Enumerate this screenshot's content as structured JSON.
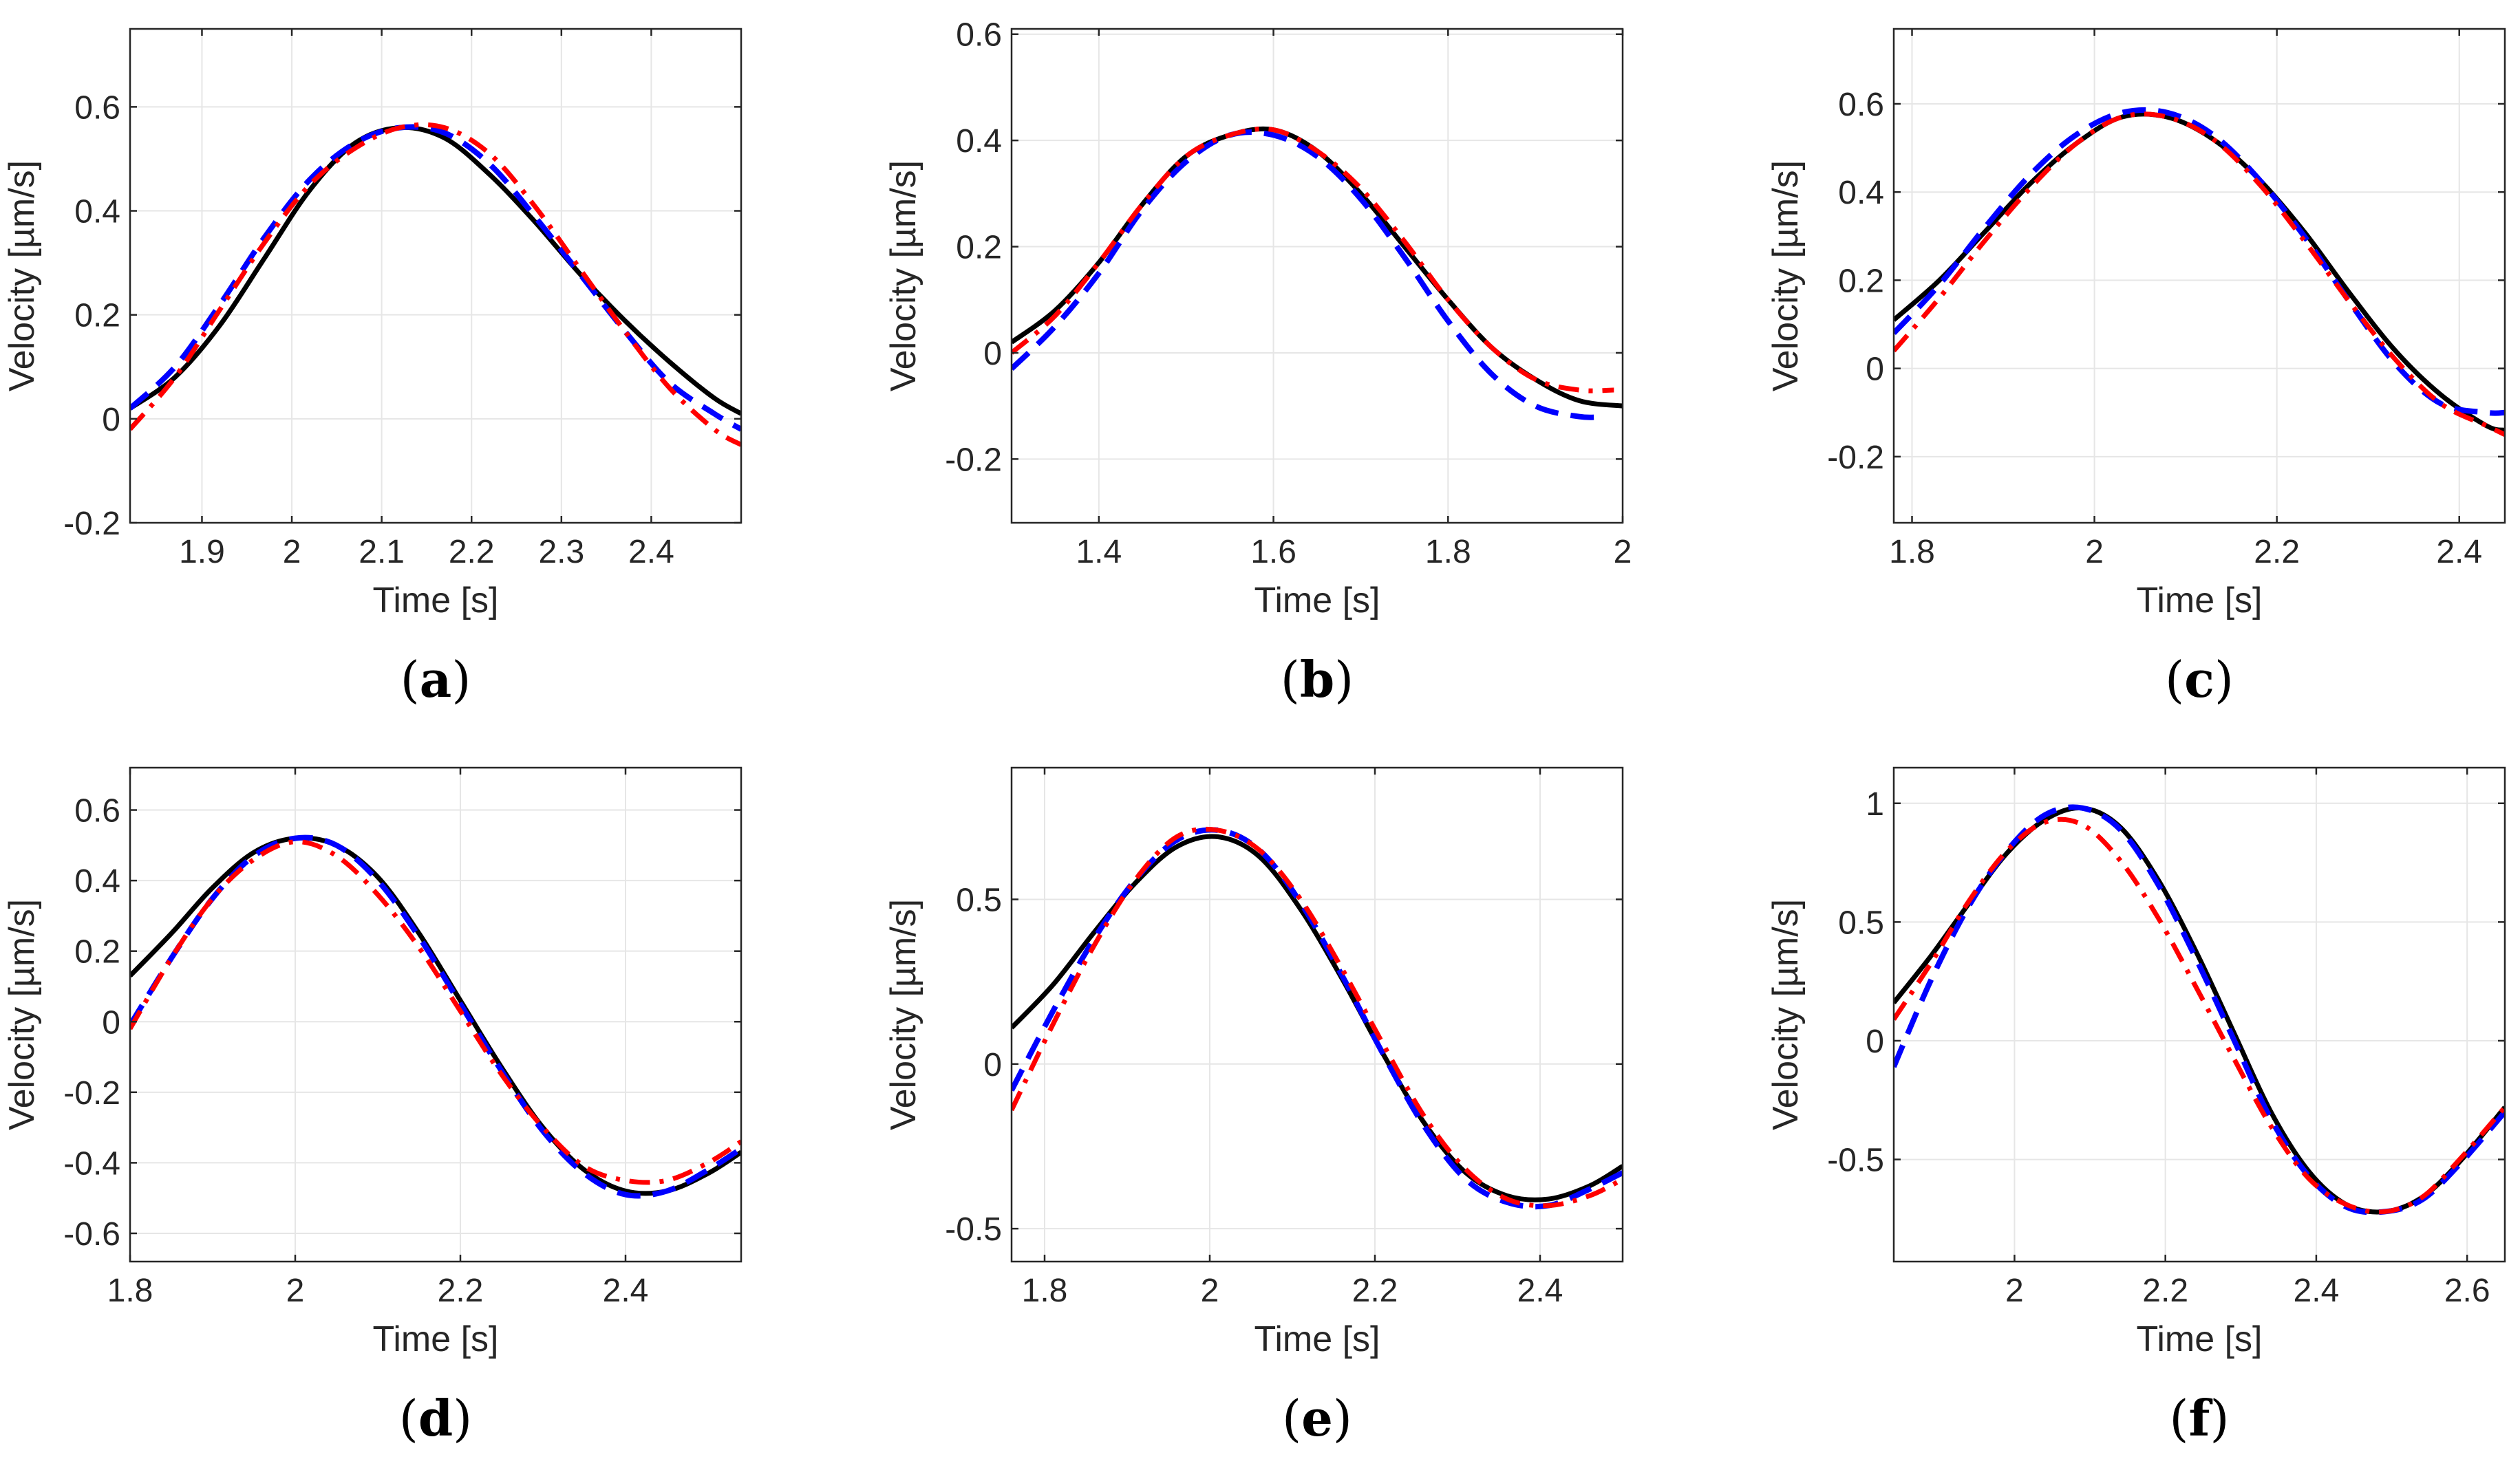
{
  "figure": {
    "series_styles": [
      {
        "name": "black solid",
        "color": "#000000",
        "dash": "solid"
      },
      {
        "name": "blue dashed",
        "color": "#0000ff",
        "dash": "dashed"
      },
      {
        "name": "red dash-dot",
        "color": "#ff0000",
        "dash": "dashdot"
      }
    ]
  },
  "chart_data": [
    {
      "type": "line",
      "panel_label": "(a)",
      "panel_letter": "a",
      "xlabel": "Time [s]",
      "ylabel": "Velocity [µm/s]",
      "xlim": [
        1.82,
        2.5
      ],
      "ylim": [
        -0.2,
        0.75
      ],
      "xticks": [
        1.9,
        2.0,
        2.1,
        2.2,
        2.3,
        2.4
      ],
      "xtick_labels": [
        "1.9",
        "2",
        "2.1",
        "2.2",
        "2.3",
        "2.4"
      ],
      "yticks": [
        -0.2,
        0,
        0.2,
        0.4,
        0.6
      ],
      "ytick_labels": [
        "-0.2",
        "0",
        "0.2",
        "0.4",
        "0.6"
      ],
      "series": [
        {
          "name": "black solid",
          "x": [
            1.82,
            1.87,
            1.92,
            1.97,
            2.02,
            2.07,
            2.12,
            2.17,
            2.22,
            2.27,
            2.32,
            2.37,
            2.42,
            2.47,
            2.5
          ],
          "y": [
            0.02,
            0.08,
            0.18,
            0.31,
            0.44,
            0.53,
            0.56,
            0.54,
            0.47,
            0.38,
            0.28,
            0.19,
            0.11,
            0.04,
            0.01
          ]
        },
        {
          "name": "blue dashed",
          "x": [
            1.82,
            1.87,
            1.92,
            1.97,
            2.02,
            2.07,
            2.12,
            2.17,
            2.22,
            2.27,
            2.32,
            2.37,
            2.42,
            2.47,
            2.5
          ],
          "y": [
            0.02,
            0.1,
            0.22,
            0.35,
            0.46,
            0.53,
            0.56,
            0.55,
            0.49,
            0.39,
            0.28,
            0.17,
            0.07,
            0.01,
            -0.02
          ]
        },
        {
          "name": "red dash-dot",
          "x": [
            1.82,
            1.87,
            1.92,
            1.97,
            2.02,
            2.07,
            2.12,
            2.17,
            2.22,
            2.27,
            2.32,
            2.37,
            2.42,
            2.47,
            2.5
          ],
          "y": [
            -0.02,
            0.08,
            0.21,
            0.34,
            0.45,
            0.52,
            0.56,
            0.56,
            0.51,
            0.41,
            0.29,
            0.17,
            0.06,
            -0.02,
            -0.05
          ]
        }
      ]
    },
    {
      "type": "line",
      "panel_label": "(b)",
      "panel_letter": "b",
      "xlabel": "Time [s]",
      "ylabel": "Velocity [µm/s]",
      "xlim": [
        1.3,
        2.0
      ],
      "ylim": [
        -0.32,
        0.61
      ],
      "xticks": [
        1.4,
        1.6,
        1.8,
        2.0
      ],
      "xtick_labels": [
        "1.4",
        "1.6",
        "1.8",
        "2"
      ],
      "yticks": [
        -0.2,
        0,
        0.2,
        0.4,
        0.6
      ],
      "ytick_labels": [
        "-0.2",
        "0",
        "0.2",
        "0.4",
        "0.6"
      ],
      "series": [
        {
          "name": "black solid",
          "x": [
            1.3,
            1.35,
            1.4,
            1.45,
            1.5,
            1.55,
            1.6,
            1.65,
            1.7,
            1.75,
            1.8,
            1.85,
            1.9,
            1.95,
            2.0
          ],
          "y": [
            0.02,
            0.08,
            0.17,
            0.28,
            0.37,
            0.41,
            0.42,
            0.38,
            0.3,
            0.2,
            0.1,
            0.01,
            -0.05,
            -0.09,
            -0.1
          ]
        },
        {
          "name": "blue dashed",
          "x": [
            1.3,
            1.35,
            1.4,
            1.45,
            1.5,
            1.55,
            1.6,
            1.65,
            1.7,
            1.75,
            1.8,
            1.85,
            1.9,
            1.95,
            1.98
          ],
          "y": [
            -0.03,
            0.05,
            0.15,
            0.27,
            0.36,
            0.41,
            0.41,
            0.37,
            0.29,
            0.18,
            0.06,
            -0.04,
            -0.1,
            -0.12,
            -0.12
          ]
        },
        {
          "name": "red dash-dot",
          "x": [
            1.3,
            1.35,
            1.4,
            1.45,
            1.5,
            1.55,
            1.6,
            1.65,
            1.7,
            1.75,
            1.8,
            1.85,
            1.9,
            1.95,
            1.99
          ],
          "y": [
            0.0,
            0.07,
            0.17,
            0.28,
            0.37,
            0.41,
            0.42,
            0.38,
            0.31,
            0.21,
            0.1,
            0.01,
            -0.05,
            -0.07,
            -0.07
          ]
        }
      ]
    },
    {
      "type": "line",
      "panel_label": "(c)",
      "panel_letter": "c",
      "xlabel": "Time [s]",
      "ylabel": "Velocity [µm/s]",
      "xlim": [
        1.78,
        2.45
      ],
      "ylim": [
        -0.35,
        0.77
      ],
      "xticks": [
        1.8,
        2.0,
        2.2,
        2.4
      ],
      "xtick_labels": [
        "1.8",
        "2",
        "2.2",
        "2.4"
      ],
      "yticks": [
        -0.2,
        0,
        0.2,
        0.4,
        0.6
      ],
      "ytick_labels": [
        "-0.2",
        "0",
        "0.2",
        "0.4",
        "0.6"
      ],
      "series": [
        {
          "name": "black solid",
          "x": [
            1.78,
            1.83,
            1.88,
            1.93,
            1.98,
            2.03,
            2.08,
            2.13,
            2.18,
            2.23,
            2.28,
            2.33,
            2.38,
            2.43,
            2.45
          ],
          "y": [
            0.11,
            0.2,
            0.31,
            0.42,
            0.51,
            0.57,
            0.57,
            0.52,
            0.43,
            0.31,
            0.17,
            0.04,
            -0.06,
            -0.13,
            -0.14
          ]
        },
        {
          "name": "blue dashed",
          "x": [
            1.78,
            1.83,
            1.88,
            1.93,
            1.98,
            2.03,
            2.08,
            2.13,
            2.18,
            2.23,
            2.28,
            2.33,
            2.38,
            2.43,
            2.45
          ],
          "y": [
            0.08,
            0.19,
            0.32,
            0.44,
            0.53,
            0.58,
            0.58,
            0.53,
            0.43,
            0.3,
            0.15,
            0.01,
            -0.08,
            -0.1,
            -0.1
          ]
        },
        {
          "name": "red dash-dot",
          "x": [
            1.78,
            1.83,
            1.88,
            1.93,
            1.98,
            2.03,
            2.08,
            2.13,
            2.18,
            2.23,
            2.28,
            2.33,
            2.38,
            2.43,
            2.45
          ],
          "y": [
            0.04,
            0.16,
            0.29,
            0.41,
            0.51,
            0.57,
            0.57,
            0.52,
            0.42,
            0.29,
            0.15,
            0.02,
            -0.08,
            -0.13,
            -0.15
          ]
        }
      ]
    },
    {
      "type": "line",
      "panel_label": "(d)",
      "panel_letter": "d",
      "xlabel": "Time [s]",
      "ylabel": "Velocity [µm/s]",
      "xlim": [
        1.8,
        2.54
      ],
      "ylim": [
        -0.68,
        0.72
      ],
      "xticks": [
        1.8,
        2.0,
        2.2,
        2.4
      ],
      "xtick_labels": [
        "1.8",
        "2",
        "2.2",
        "2.4"
      ],
      "yticks": [
        -0.6,
        -0.4,
        -0.2,
        0,
        0.2,
        0.4,
        0.6
      ],
      "ytick_labels": [
        "-0.6",
        "-0.4",
        "-0.2",
        "0",
        "0.2",
        "0.4",
        "0.6"
      ],
      "series": [
        {
          "name": "black solid",
          "x": [
            1.8,
            1.85,
            1.9,
            1.95,
            2.0,
            2.05,
            2.1,
            2.15,
            2.2,
            2.25,
            2.3,
            2.35,
            2.4,
            2.45,
            2.5,
            2.54
          ],
          "y": [
            0.13,
            0.25,
            0.38,
            0.48,
            0.52,
            0.5,
            0.41,
            0.25,
            0.06,
            -0.13,
            -0.3,
            -0.42,
            -0.48,
            -0.48,
            -0.43,
            -0.37
          ]
        },
        {
          "name": "blue dashed",
          "x": [
            1.8,
            1.85,
            1.9,
            1.95,
            2.0,
            2.05,
            2.1,
            2.15,
            2.2,
            2.25,
            2.3,
            2.35,
            2.4,
            2.45,
            2.5,
            2.54
          ],
          "y": [
            -0.01,
            0.18,
            0.35,
            0.47,
            0.52,
            0.5,
            0.4,
            0.24,
            0.05,
            -0.14,
            -0.31,
            -0.43,
            -0.49,
            -0.48,
            -0.42,
            -0.36
          ]
        },
        {
          "name": "red dash-dot",
          "x": [
            1.8,
            1.85,
            1.9,
            1.95,
            2.0,
            2.05,
            2.1,
            2.15,
            2.2,
            2.25,
            2.3,
            2.35,
            2.4,
            2.45,
            2.5,
            2.54
          ],
          "y": [
            -0.02,
            0.18,
            0.35,
            0.46,
            0.51,
            0.47,
            0.36,
            0.21,
            0.03,
            -0.15,
            -0.3,
            -0.41,
            -0.45,
            -0.45,
            -0.4,
            -0.34
          ]
        }
      ]
    },
    {
      "type": "line",
      "panel_label": "(e)",
      "panel_letter": "e",
      "xlabel": "Time [s]",
      "ylabel": "Velocity [µm/s]",
      "xlim": [
        1.76,
        2.5
      ],
      "ylim": [
        -0.6,
        0.9
      ],
      "xticks": [
        1.8,
        2.0,
        2.2,
        2.4
      ],
      "xtick_labels": [
        "1.8",
        "2",
        "2.2",
        "2.4"
      ],
      "yticks": [
        -0.5,
        0,
        0.5
      ],
      "ytick_labels": [
        "-0.5",
        "0",
        "0.5"
      ],
      "series": [
        {
          "name": "black solid",
          "x": [
            1.76,
            1.81,
            1.86,
            1.91,
            1.96,
            2.01,
            2.06,
            2.11,
            2.16,
            2.21,
            2.26,
            2.31,
            2.36,
            2.41,
            2.46,
            2.5
          ],
          "y": [
            0.11,
            0.24,
            0.4,
            0.55,
            0.66,
            0.69,
            0.63,
            0.47,
            0.26,
            0.03,
            -0.18,
            -0.33,
            -0.4,
            -0.41,
            -0.37,
            -0.31
          ]
        },
        {
          "name": "blue dashed",
          "x": [
            1.76,
            1.81,
            1.86,
            1.91,
            1.96,
            2.01,
            2.06,
            2.11,
            2.16,
            2.21,
            2.26,
            2.31,
            2.36,
            2.41,
            2.46,
            2.5
          ],
          "y": [
            -0.08,
            0.16,
            0.38,
            0.56,
            0.68,
            0.71,
            0.65,
            0.49,
            0.27,
            0.03,
            -0.19,
            -0.35,
            -0.42,
            -0.43,
            -0.38,
            -0.33
          ]
        },
        {
          "name": "red dash-dot",
          "x": [
            1.76,
            1.81,
            1.86,
            1.91,
            1.96,
            2.01,
            2.06,
            2.11,
            2.16,
            2.21,
            2.26,
            2.31,
            2.36,
            2.41,
            2.46,
            2.5
          ],
          "y": [
            -0.14,
            0.12,
            0.36,
            0.56,
            0.69,
            0.71,
            0.65,
            0.5,
            0.29,
            0.06,
            -0.16,
            -0.32,
            -0.41,
            -0.43,
            -0.4,
            -0.35
          ]
        }
      ]
    },
    {
      "type": "line",
      "panel_label": "(f)",
      "panel_letter": "f",
      "xlabel": "Time [s]",
      "ylabel": "Velocity [µm/s]",
      "xlim": [
        1.84,
        2.65
      ],
      "ylim": [
        -0.93,
        1.15
      ],
      "xticks": [
        2.0,
        2.2,
        2.4,
        2.6
      ],
      "xtick_labels": [
        "2",
        "2.2",
        "2.4",
        "2.6"
      ],
      "yticks": [
        -0.5,
        0,
        0.5,
        1.0
      ],
      "ytick_labels": [
        "-0.5",
        "0",
        "0.5",
        "1"
      ],
      "series": [
        {
          "name": "black solid",
          "x": [
            1.84,
            1.89,
            1.94,
            1.99,
            2.04,
            2.09,
            2.14,
            2.19,
            2.24,
            2.29,
            2.34,
            2.39,
            2.44,
            2.49,
            2.54,
            2.59,
            2.65
          ],
          "y": [
            0.16,
            0.36,
            0.58,
            0.79,
            0.93,
            0.98,
            0.9,
            0.68,
            0.38,
            0.04,
            -0.3,
            -0.55,
            -0.69,
            -0.72,
            -0.66,
            -0.51,
            -0.28
          ]
        },
        {
          "name": "blue dashed",
          "x": [
            1.84,
            1.89,
            1.94,
            1.99,
            2.04,
            2.09,
            2.14,
            2.19,
            2.24,
            2.29,
            2.34,
            2.39,
            2.44,
            2.49,
            2.54,
            2.59,
            2.65
          ],
          "y": [
            -0.11,
            0.26,
            0.57,
            0.8,
            0.95,
            0.98,
            0.89,
            0.66,
            0.35,
            0.01,
            -0.33,
            -0.57,
            -0.7,
            -0.72,
            -0.67,
            -0.52,
            -0.3
          ]
        },
        {
          "name": "red dash-dot",
          "x": [
            1.84,
            1.89,
            1.94,
            1.99,
            2.04,
            2.09,
            2.14,
            2.19,
            2.24,
            2.29,
            2.34,
            2.39,
            2.44,
            2.49,
            2.54,
            2.59,
            2.65
          ],
          "y": [
            0.09,
            0.33,
            0.59,
            0.8,
            0.92,
            0.91,
            0.76,
            0.52,
            0.23,
            -0.07,
            -0.36,
            -0.58,
            -0.69,
            -0.72,
            -0.66,
            -0.5,
            -0.28
          ]
        }
      ]
    }
  ]
}
